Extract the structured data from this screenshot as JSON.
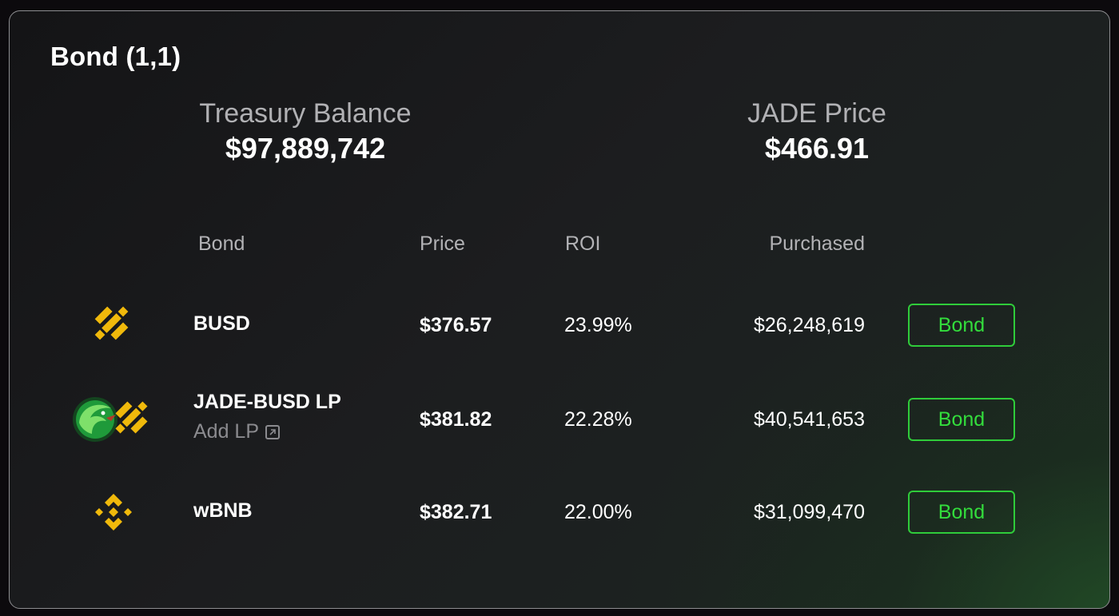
{
  "panel": {
    "title": "Bond (1,1)"
  },
  "stats": {
    "treasury_label": "Treasury Balance",
    "treasury_value": "$97,889,742",
    "price_label": "JADE Price",
    "price_value": "$466.91"
  },
  "table": {
    "headers": {
      "bond": "Bond",
      "price": "Price",
      "roi": "ROI",
      "purchased": "Purchased"
    },
    "rows": [
      {
        "name": "BUSD",
        "icon": "busd-icon",
        "price": "$376.57",
        "roi": "23.99%",
        "purchased": "$26,248,619",
        "action": "Bond"
      },
      {
        "name": "JADE-BUSD LP",
        "icon": "jade-busd-lp-icon",
        "sub_link": "Add LP",
        "price": "$381.82",
        "roi": "22.28%",
        "purchased": "$40,541,653",
        "action": "Bond"
      },
      {
        "name": "wBNB",
        "icon": "bnb-icon",
        "price": "$382.71",
        "roi": "22.00%",
        "purchased": "$31,099,470",
        "action": "Bond"
      }
    ]
  },
  "colors": {
    "accent_green": "#33dd3c",
    "coin_yellow": "#f0b90b",
    "jade_green": "#1f9a3a"
  }
}
